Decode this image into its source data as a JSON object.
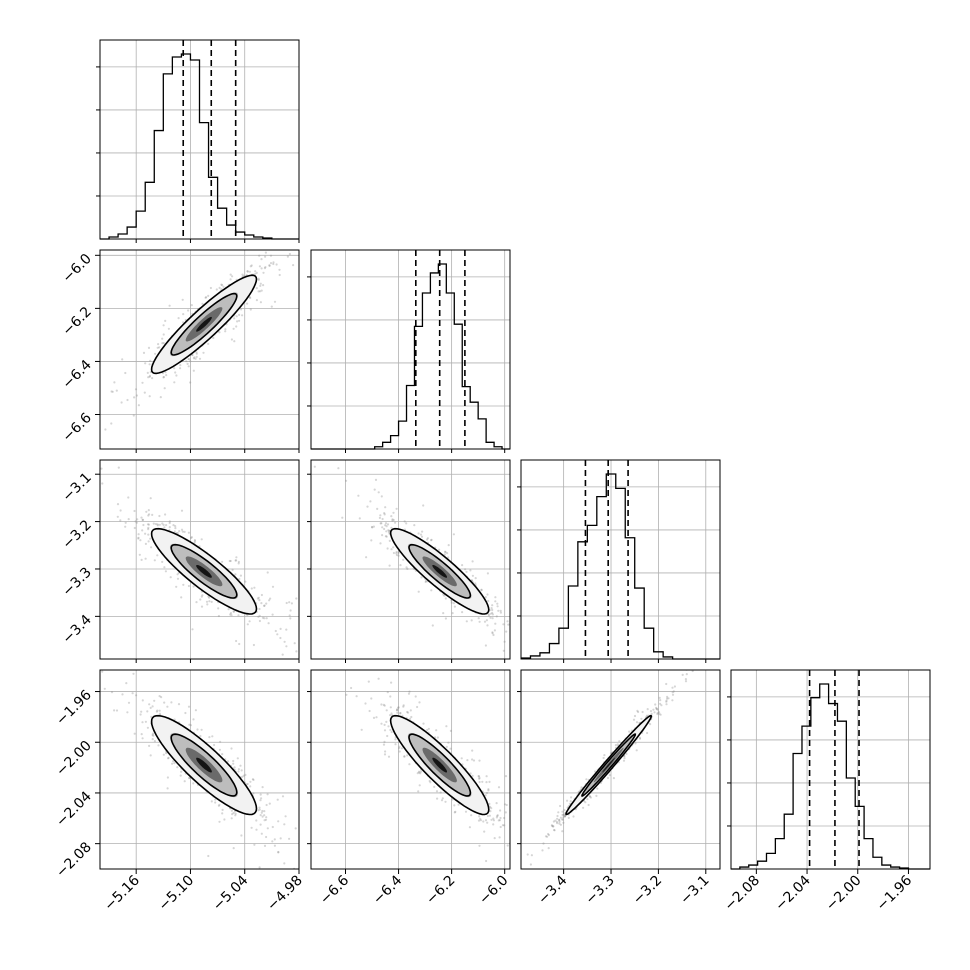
{
  "chart_data": {
    "type": "corner",
    "parameters": [
      {
        "ticks": [
          -5.16,
          -5.1,
          -5.04,
          -4.98
        ],
        "tick_labels": [
          "−5.16",
          "−5.10",
          "−5.04",
          "−4.98"
        ],
        "range": [
          -5.2,
          -4.98
        ],
        "quantiles": [
          -5.108,
          -5.077,
          -5.05
        ],
        "hist": {
          "edges": [
            -5.2,
            -5.19,
            -5.18,
            -5.17,
            -5.16,
            -5.15,
            -5.14,
            -5.13,
            -5.12,
            -5.11,
            -5.1,
            -5.09,
            -5.08,
            -5.07,
            -5.06,
            -5.05,
            -5.04,
            -5.03,
            -5.02,
            -5.01,
            -5.0,
            -4.99,
            -4.98
          ],
          "counts": [
            0,
            10,
            25,
            60,
            140,
            285,
            545,
            830,
            915,
            930,
            900,
            585,
            310,
            155,
            70,
            35,
            20,
            10,
            5,
            0,
            0,
            0
          ],
          "max": 930
        }
      },
      {
        "ticks": [
          -6.6,
          -6.4,
          -6.2,
          -6.0
        ],
        "tick_labels": [
          "−6.6",
          "−6.4",
          "−6.2",
          "−6.0"
        ],
        "range": [
          -6.73,
          -5.98
        ],
        "quantiles": [
          -6.335,
          -6.245,
          -6.15
        ],
        "hist": {
          "edges": [
            -6.73,
            -6.7,
            -6.67,
            -6.64,
            -6.61,
            -6.58,
            -6.55,
            -6.52,
            -6.49,
            -6.46,
            -6.43,
            -6.4,
            -6.37,
            -6.34,
            -6.31,
            -6.28,
            -6.25,
            -6.22,
            -6.19,
            -6.16,
            -6.13,
            -6.1,
            -6.07,
            -6.04,
            -6.01,
            -5.98
          ],
          "counts": [
            0,
            0,
            0,
            0,
            0,
            0,
            0,
            0,
            10,
            30,
            60,
            125,
            285,
            550,
            700,
            790,
            830,
            700,
            560,
            280,
            210,
            135,
            30,
            10,
            0
          ],
          "max": 830
        }
      },
      {
        "ticks": [
          -3.4,
          -3.3,
          -3.2,
          -3.1
        ],
        "tick_labels": [
          "−3.4",
          "−3.3",
          "−3.2",
          "−3.1"
        ],
        "range": [
          -3.49,
          -3.07
        ],
        "quantiles": [
          -3.354,
          -3.306,
          -3.264
        ],
        "hist": {
          "edges": [
            -3.49,
            -3.47,
            -3.45,
            -3.43,
            -3.41,
            -3.39,
            -3.37,
            -3.35,
            -3.33,
            -3.31,
            -3.29,
            -3.27,
            -3.25,
            -3.23,
            -3.21,
            -3.19,
            -3.17,
            -3.15,
            -3.13,
            -3.11,
            -3.09,
            -3.07
          ],
          "counts": [
            5,
            15,
            30,
            75,
            150,
            355,
            570,
            650,
            790,
            900,
            830,
            590,
            345,
            150,
            35,
            10,
            0,
            0,
            0,
            0,
            0
          ],
          "max": 900
        }
      },
      {
        "ticks": [
          -2.08,
          -2.04,
          -2.0,
          -1.96
        ],
        "tick_labels": [
          "−2.08",
          "−2.04",
          "−2.00",
          "−1.96"
        ],
        "range": [
          -2.1,
          -1.943
        ],
        "quantiles": [
          -2.038,
          -2.018,
          -1.999
        ],
        "hist": {
          "edges": [
            -2.1,
            -2.093,
            -2.086,
            -2.079,
            -2.072,
            -2.065,
            -2.058,
            -2.051,
            -2.044,
            -2.037,
            -2.03,
            -2.023,
            -2.016,
            -2.009,
            -2.002,
            -1.995,
            -1.988,
            -1.981,
            -1.974,
            -1.967,
            -1.96,
            -1.953,
            -1.946,
            -1.943
          ],
          "counts": [
            0,
            10,
            20,
            40,
            80,
            155,
            280,
            590,
            730,
            875,
            945,
            845,
            755,
            465,
            320,
            155,
            60,
            20,
            10,
            5,
            0,
            0,
            0
          ],
          "max": 945
        }
      }
    ],
    "pairs": [
      {
        "row": 1,
        "col": 0,
        "mean": [
          -5.085,
          -6.26
        ],
        "corr": 0.92
      },
      {
        "row": 2,
        "col": 0,
        "mean": [
          -5.085,
          -3.305
        ],
        "corr": -0.88
      },
      {
        "row": 2,
        "col": 1,
        "mean": [
          -6.245,
          -3.305
        ],
        "corr": -0.9
      },
      {
        "row": 3,
        "col": 0,
        "mean": [
          -5.085,
          -2.018
        ],
        "corr": -0.88
      },
      {
        "row": 3,
        "col": 1,
        "mean": [
          -6.245,
          -2.018
        ],
        "corr": -0.9
      },
      {
        "row": 3,
        "col": 2,
        "mean": [
          -3.305,
          -2.018
        ],
        "corr": 0.99
      }
    ],
    "grid": true,
    "colors": {
      "line": "#000000",
      "grid": "#b0b0b0",
      "scatter": "#8a8a8a"
    }
  }
}
